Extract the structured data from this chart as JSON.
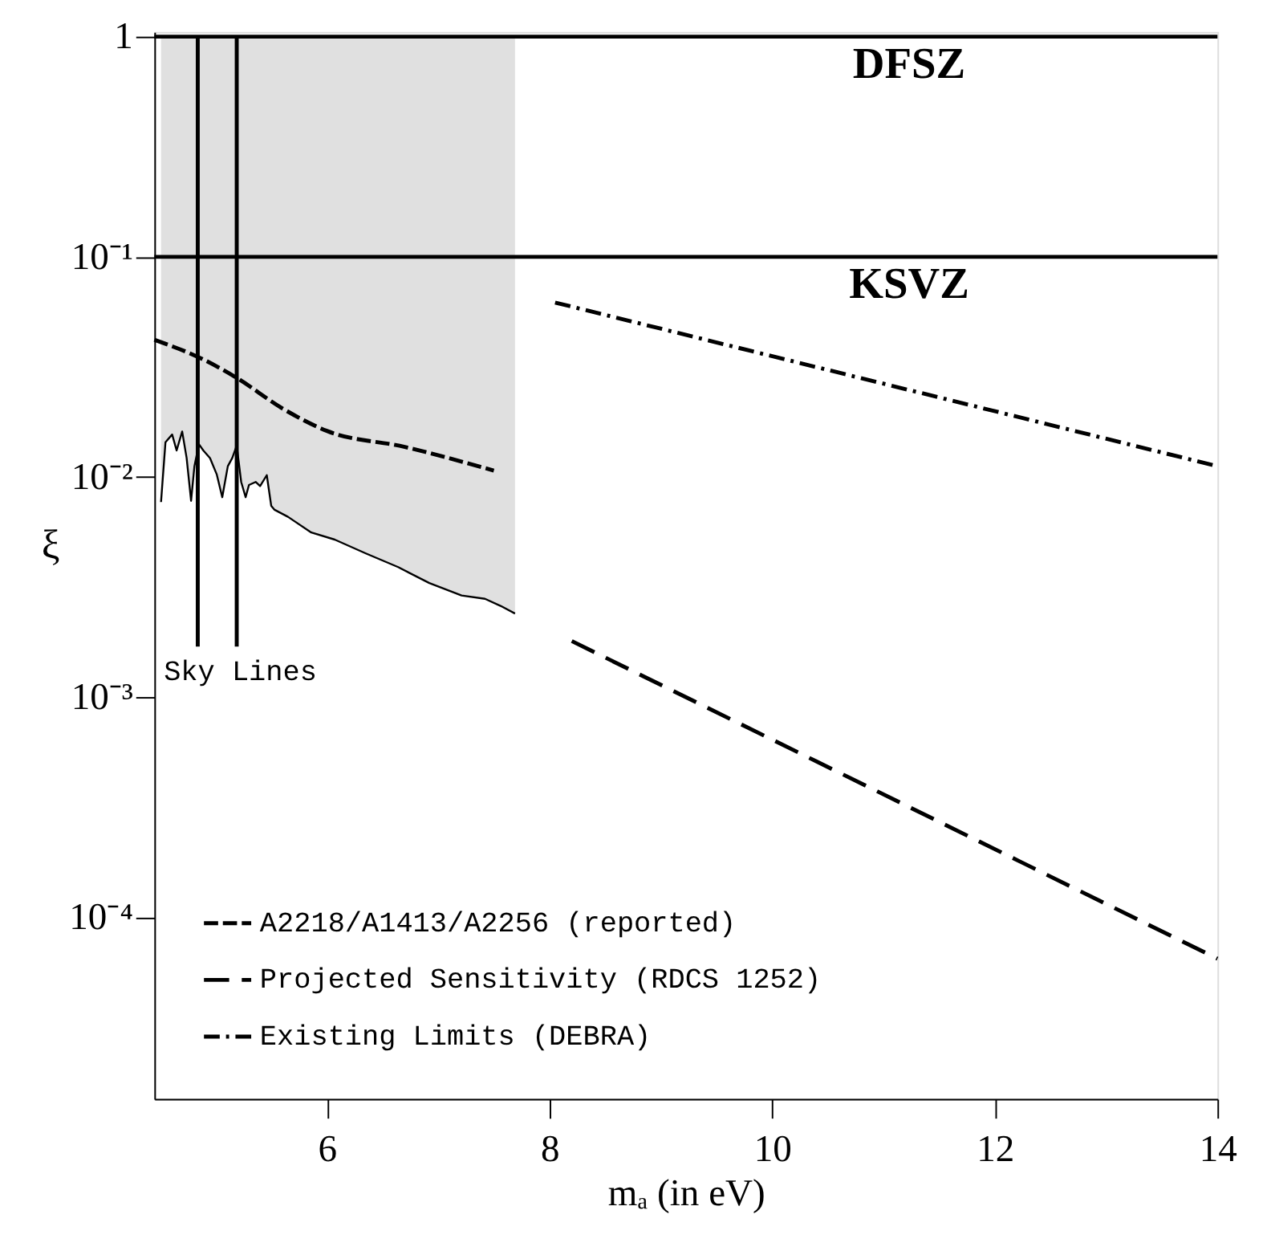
{
  "chart_data": {
    "type": "line",
    "xlabel": "mₐ (in eV)",
    "ylabel": "ξ",
    "xlim": [
      4.45,
      14
    ],
    "xticks": [
      6,
      8,
      10,
      12,
      14
    ],
    "ylim": [
      1.5e-05,
      1.05
    ],
    "yticks": [
      {
        "value": 1,
        "label": "1"
      },
      {
        "value": 0.1,
        "label": "10⁻¹"
      },
      {
        "value": 0.01,
        "label": "10⁻²"
      },
      {
        "value": 0.001,
        "label": "10⁻³"
      },
      {
        "value": 0.0001,
        "label": "10⁻⁴"
      }
    ],
    "log": "y",
    "grid": false,
    "legend": "bottom left",
    "series": [
      {
        "name": "A2218/A1413/A2256 (reported)",
        "color": "#000000",
        "line_style": "dashed",
        "x": [
          4.45,
          4.9,
          5.2,
          5.6,
          6.0,
          6.7,
          7.5
        ],
        "values": [
          0.042,
          0.034,
          0.028,
          0.0205,
          0.0162,
          0.0137,
          0.0107
        ]
      },
      {
        "name": "Projected Sensitivity (RDCS 1252)",
        "color": "#000000",
        "line_style": "longdashed",
        "x": [
          8.2,
          14
        ],
        "values": [
          0.0018,
          6.5e-05
        ]
      },
      {
        "name": "Existing Limits (DEBRA)",
        "color": "#000000",
        "line_style": "dashdot",
        "x": [
          8.05,
          14
        ],
        "values": [
          0.062,
          0.0112
        ]
      },
      {
        "color": "#000000",
        "line_style": "solid",
        "x": [
          4.51,
          4.55,
          4.61,
          4.65,
          4.7,
          4.74,
          4.78,
          4.81,
          4.85,
          4.89,
          4.95,
          5.01,
          5.06,
          5.11,
          5.15,
          5.19,
          5.23,
          5.27,
          5.3,
          5.36,
          5.4,
          5.46,
          5.5,
          5.53,
          5.65,
          5.86,
          6.07,
          6.35,
          6.64,
          6.92,
          7.21,
          7.42,
          7.56,
          7.69
        ],
        "values": [
          0.0077,
          0.0144,
          0.0156,
          0.0132,
          0.0161,
          0.0122,
          0.0078,
          0.0112,
          0.0141,
          0.0132,
          0.0122,
          0.0103,
          0.0081,
          0.0112,
          0.0122,
          0.0139,
          0.0095,
          0.0081,
          0.0092,
          0.0095,
          0.0091,
          0.0102,
          0.0074,
          0.0071,
          0.0066,
          0.0056,
          0.0052,
          0.0045,
          0.0039,
          0.0033,
          0.0029,
          0.0028,
          0.0026,
          0.0024
        ],
        "lower": [
          0.0077,
          0.0144,
          0.0156,
          0.0132,
          0.0161,
          0.0122,
          0.0078,
          0.0112,
          0.0141,
          0.0132,
          0.0122,
          0.0103,
          0.0081,
          0.0112,
          0.0122,
          0.0139,
          0.0095,
          0.0081,
          0.0092,
          0.0095,
          0.0091,
          0.0102,
          0.0074,
          0.0071,
          0.0066,
          0.0056,
          0.0052,
          0.0045,
          0.0039,
          0.0033,
          0.0029,
          0.0028,
          0.0026,
          0.0024
        ],
        "upper": [
          1,
          1,
          1,
          1,
          1,
          1,
          1,
          1,
          1,
          1,
          1,
          1,
          1,
          1,
          1,
          1,
          1,
          1,
          1,
          1,
          1,
          1,
          1,
          1,
          1,
          1,
          1,
          1,
          1,
          1,
          1,
          1,
          1,
          1
        ]
      },
      {
        "color": "#000000",
        "line_style": "solid",
        "x": [
          4.84,
          4.84
        ],
        "values": [
          1,
          0.0017
        ]
      },
      {
        "color": "#000000",
        "line_style": "solid",
        "x": [
          5.19,
          5.19
        ],
        "values": [
          1,
          0.0017
        ]
      }
    ],
    "ref_lines": [
      {
        "axis": "y",
        "value": 1,
        "label": "DFSZ"
      },
      {
        "axis": "y",
        "value": 0.1,
        "label": "KSVZ"
      }
    ],
    "annotations": [
      "Sky Lines"
    ]
  }
}
